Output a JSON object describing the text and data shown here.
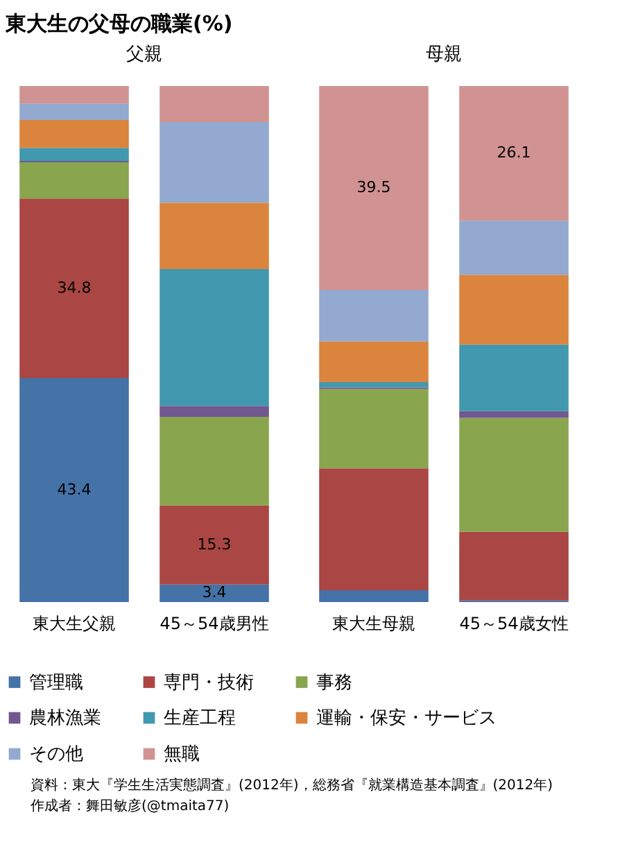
{
  "chart_data": {
    "type": "bar",
    "stacked": true,
    "title": "東大生の父母の職業(%)",
    "categories": [
      "東大生父親",
      "45～54歳男性",
      "東大生母親",
      "45～54歳女性"
    ],
    "series": [
      {
        "name": "管理職",
        "color": "#4572a7",
        "values": [
          43.4,
          3.4,
          2.3,
          0.3
        ],
        "value_labels": [
          "43.4",
          "3.4",
          null,
          null
        ]
      },
      {
        "name": "専門・技術",
        "color": "#aa4643",
        "values": [
          34.8,
          15.3,
          23.6,
          13.3
        ],
        "value_labels": [
          "34.8",
          "15.3",
          null,
          null
        ]
      },
      {
        "name": "事務",
        "color": "#89a54e",
        "values": [
          7.0,
          17.2,
          15.4,
          22.1
        ],
        "value_labels": [
          null,
          null,
          null,
          null
        ]
      },
      {
        "name": "農林漁業",
        "color": "#71588f",
        "values": [
          0.3,
          2.1,
          0.3,
          1.3
        ],
        "value_labels": [
          null,
          null,
          null,
          null
        ]
      },
      {
        "name": "生産工程",
        "color": "#4198af",
        "values": [
          2.5,
          26.5,
          1.0,
          12.9
        ],
        "value_labels": [
          null,
          null,
          null,
          null
        ]
      },
      {
        "name": "運輸・保安・サービス",
        "color": "#db843d",
        "values": [
          5.4,
          12.9,
          7.9,
          13.5
        ],
        "value_labels": [
          null,
          null,
          null,
          null
        ]
      },
      {
        "name": "その他",
        "color": "#93a9cf",
        "values": [
          3.2,
          15.6,
          10.0,
          10.5
        ],
        "value_labels": [
          null,
          null,
          null,
          null
        ]
      },
      {
        "name": "無職",
        "color": "#d19392",
        "values": [
          3.4,
          7.0,
          39.5,
          26.1
        ],
        "value_labels": [
          null,
          null,
          "39.5",
          "26.1"
        ]
      }
    ],
    "legend": "bottom",
    "annotations": [
      "父親",
      "母親",
      "資料：東大『学生生活実態調査』(2012年)，総務省『就業構造基本調査』(2012年)",
      "作成者：舞田敏彦(@tmaita77)"
    ]
  }
}
